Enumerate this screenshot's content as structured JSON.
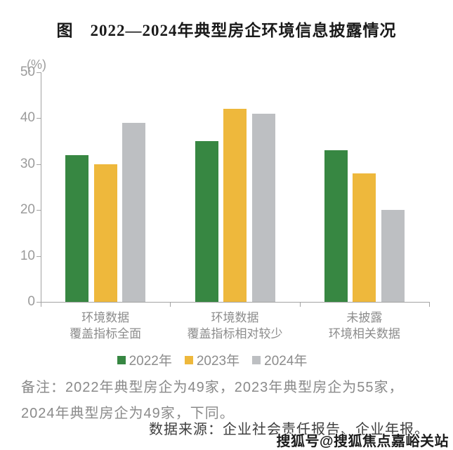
{
  "title": "图　2022—2024年典型房企环境信息披露情况",
  "note": "备注：2022年典型房企为49家，2023年典型房企为55家，2024年典型房企为49家，下同。",
  "source": "数据来源：企业社会责任报告、企业年报。",
  "watermark": "搜狐号@搜狐焦点嘉峪关站",
  "colors": {
    "green": "#378742",
    "yellow": "#eeb83c",
    "gray": "#bdbfc2",
    "axis": "#a3a3a3",
    "tick_text": "#9b9b9b",
    "label_text": "#8c8c8c",
    "note_text": "#8a8a8a",
    "source_text": "#3e3e3e",
    "title_text": "#1a1a1a"
  },
  "chart_data": {
    "type": "bar",
    "title": "图　2022—2024年典型房企环境信息披露情况",
    "unit_label": "(%)",
    "ylabel": "(%)",
    "xlabel": "",
    "ylim": [
      0,
      50
    ],
    "yticks": [
      0,
      10,
      20,
      30,
      40,
      50
    ],
    "grid": false,
    "legend_position": "bottom",
    "categories": [
      [
        "环境数据",
        "覆盖指标全面"
      ],
      [
        "环境数据",
        "覆盖指标相对较少"
      ],
      [
        "未披露",
        "环境相关数据"
      ]
    ],
    "series": [
      {
        "name": "2022年",
        "color": "#378742",
        "values": [
          32,
          35,
          33
        ]
      },
      {
        "name": "2023年",
        "color": "#eeb83c",
        "values": [
          30,
          42,
          28
        ]
      },
      {
        "name": "2024年",
        "color": "#bdbfc2",
        "values": [
          39,
          41,
          20
        ]
      }
    ]
  }
}
